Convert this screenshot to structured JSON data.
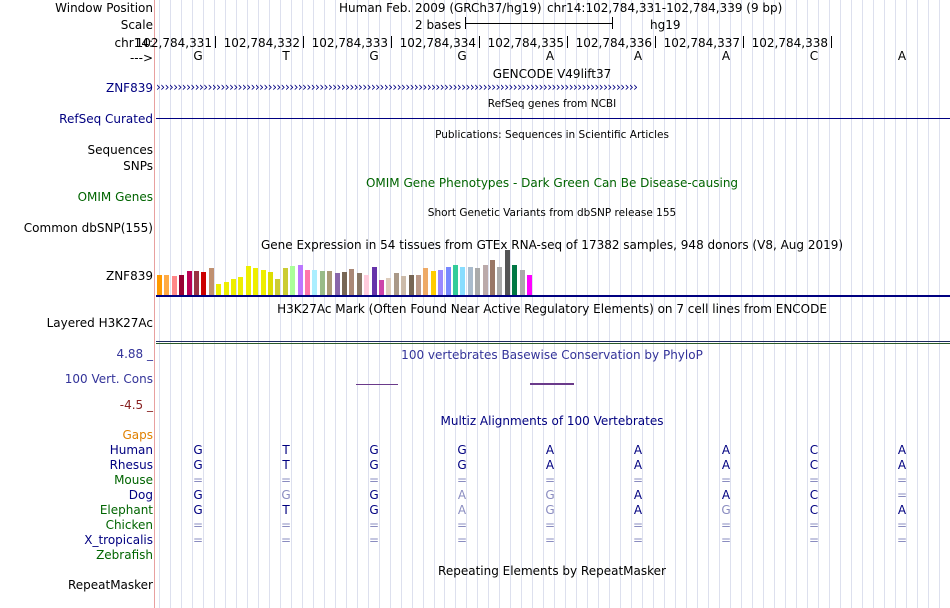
{
  "header": {
    "window_position_label": "Window Position",
    "scale_label": "Scale",
    "chrom_label": "chr14:",
    "strand_label": "--->",
    "assembly": "Human Feb. 2009 (GRCh37/hg19)",
    "position": "chr14:102,784,331-102,784,339 (9 bp)",
    "scale_text": "2 bases",
    "scale_db": "hg19"
  },
  "positions": [
    "102,784,331",
    "102,784,332",
    "102,784,333",
    "102,784,334",
    "102,784,335",
    "102,784,336",
    "102,784,337",
    "102,784,338"
  ],
  "sequence": [
    "G",
    "T",
    "G",
    "G",
    "A",
    "A",
    "A",
    "C",
    "A"
  ],
  "tracks": {
    "gencode_title": "GENCODE V49lift37",
    "gencode_label": "ZNF839",
    "gene_arrows": "››››››››››››››››››››››››››››››››››››››››››››››››››››››››››››››››››››››››››››››››››››››››››››››››››››››››››››››››",
    "refseq_title": "RefSeq genes from NCBI",
    "refseq_label": "RefSeq Curated",
    "pubs_title": "Publications: Sequences in Scientific Articles",
    "pubs_label": "Sequences",
    "snps_label": "SNPs",
    "omim_title": "OMIM Gene Phenotypes - Dark Green Can Be Disease-causing",
    "omim_label": "OMIM Genes",
    "dbsnp_title": "Short Genetic Variants from dbSNP release 155",
    "dbsnp_label": "Common dbSNP(155)",
    "gtex_title": "Gene Expression in 54 tissues from GTEx RNA-seq of 17382 samples, 948 donors (V8, Aug 2019)",
    "gtex_label": "ZNF839",
    "h3k27_title": "H3K27Ac Mark (Often Found Near Active Regulatory Elements) on 7 cell lines from ENCODE",
    "h3k27_label": "Layered H3K27Ac",
    "phylop_title": "100 vertebrates Basewise Conservation by PhyloP",
    "phylop_max": "4.88 _",
    "phylop_min": "-4.5 _",
    "phylop_label": "100 Vert. Cons",
    "multiz_title": "Multiz Alignments of 100 Vertebrates",
    "gaps_label": "Gaps",
    "rmsk_title": "Repeating Elements by RepeatMasker",
    "rmsk_label": "RepeatMasker"
  },
  "alignment": [
    {
      "species": "Human",
      "color": "#000080",
      "bases": [
        "G",
        "T",
        "G",
        "G",
        "A",
        "A",
        "A",
        "C",
        "A"
      ],
      "light": [
        false,
        false,
        false,
        false,
        false,
        false,
        false,
        false,
        false
      ]
    },
    {
      "species": "Rhesus",
      "color": "#000080",
      "bases": [
        "G",
        "T",
        "G",
        "G",
        "A",
        "A",
        "A",
        "C",
        "A"
      ],
      "light": [
        false,
        false,
        false,
        false,
        false,
        false,
        false,
        false,
        false
      ]
    },
    {
      "species": "Mouse",
      "color": "#006400",
      "bases": [
        "=",
        "=",
        "=",
        "=",
        "=",
        "=",
        "=",
        "=",
        "="
      ],
      "light": [
        true,
        true,
        true,
        true,
        true,
        true,
        true,
        true,
        true
      ]
    },
    {
      "species": "Dog",
      "color": "#000080",
      "bases": [
        "G",
        "G",
        "G",
        "A",
        "G",
        "A",
        "A",
        "C",
        "="
      ],
      "light": [
        false,
        true,
        false,
        true,
        true,
        false,
        false,
        false,
        true
      ]
    },
    {
      "species": "Elephant",
      "color": "#006400",
      "bases": [
        "G",
        "T",
        "G",
        "A",
        "G",
        "A",
        "G",
        "C",
        "A"
      ],
      "light": [
        false,
        false,
        false,
        true,
        true,
        false,
        true,
        false,
        false
      ]
    },
    {
      "species": "Chicken",
      "color": "#006400",
      "bases": [
        "=",
        "=",
        "=",
        "=",
        "=",
        "=",
        "=",
        "=",
        "="
      ],
      "light": [
        true,
        true,
        true,
        true,
        true,
        true,
        true,
        true,
        true
      ]
    },
    {
      "species": "X_tropicalis",
      "color": "#000080",
      "bases": [
        "=",
        "=",
        "=",
        "=",
        "=",
        "=",
        "=",
        "=",
        "="
      ],
      "light": [
        true,
        true,
        true,
        true,
        true,
        true,
        true,
        true,
        true
      ]
    },
    {
      "species": "Zebrafish",
      "color": "#006400",
      "bases": [],
      "light": []
    }
  ],
  "gtex_values": [
    20,
    20,
    19,
    20,
    24,
    24,
    23,
    27,
    11,
    13,
    16,
    18,
    29,
    27,
    25,
    23,
    16,
    27,
    29,
    30,
    25,
    25,
    24,
    24,
    22,
    23,
    26,
    22,
    20,
    28,
    15,
    17,
    22,
    19,
    20,
    20,
    27,
    24,
    25,
    28,
    30,
    28,
    28,
    27,
    30,
    35,
    28,
    45,
    30,
    25,
    20
  ],
  "gtex_colors": [
    "#FF9900",
    "#FFAA44",
    "#FF8888",
    "#990033",
    "#BB0055",
    "#993344",
    "#CC0000",
    "#C09070",
    "#EEEE00",
    "#EEEE00",
    "#EEEE00",
    "#EEEE00",
    "#EEEE00",
    "#EEEE00",
    "#EEEE00",
    "#DDDD00",
    "#CCCC33",
    "#CCCC33",
    "#AAFF99",
    "#BB77FF",
    "#FF77AA",
    "#AAEEFF",
    "#99BB88",
    "#AA9977",
    "#8866AA",
    "#776655",
    "#AA8877",
    "#887766",
    "#FFCCDD",
    "#6633AA",
    "#CC44AA",
    "#DDCCBB",
    "#AA9988",
    "#CCBBAA",
    "#776655",
    "#BB9988",
    "#EEAA66",
    "#FFCC00",
    "#9988FF",
    "#7788FF",
    "#33CC99",
    "#88DDFF",
    "#AABBCC",
    "#AAAAAA",
    "#BBAAAA",
    "#997766",
    "#AAAAAA",
    "#555555",
    "#007744",
    "#AAAAAA",
    "#FF00FF"
  ]
}
